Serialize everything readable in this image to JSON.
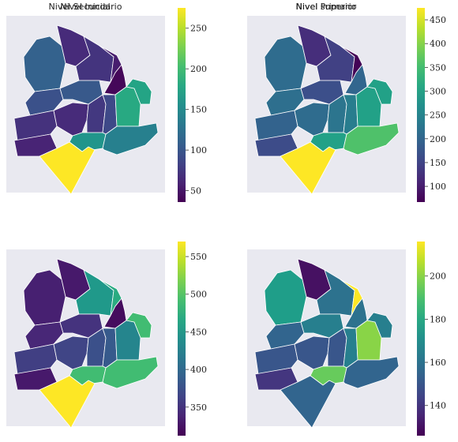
{
  "chart_data": [
    {
      "type": "choropleth",
      "title": "Nivel Inicial",
      "colormap": "viridis",
      "colorbar": {
        "range": [
          36,
          275
        ],
        "ticks": [
          50,
          100,
          150,
          200,
          250
        ]
      },
      "values": [
        110,
        65,
        72,
        55,
        40,
        95,
        102,
        70,
        60,
        65,
        75,
        88,
        180,
        175,
        160,
        140,
        275
      ]
    },
    {
      "type": "choropleth",
      "title": "Nivel Primario",
      "colormap": "viridis",
      "colorbar": {
        "range": [
          67,
          475
        ],
        "ticks": [
          100,
          150,
          200,
          250,
          300,
          350,
          400,
          450
        ]
      },
      "values": [
        210,
        120,
        145,
        70,
        200,
        215,
        165,
        195,
        160,
        210,
        225,
        240,
        300,
        300,
        300,
        360,
        475
      ]
    },
    {
      "type": "choropleth",
      "title": "Nivel Secundario",
      "colormap": "viridis",
      "colorbar": {
        "range": [
          312,
          570
        ],
        "ticks": [
          350,
          400,
          450,
          500,
          550
        ]
      },
      "values": [
        335,
        330,
        450,
        470,
        320,
        340,
        350,
        360,
        330,
        365,
        375,
        385,
        430,
        490,
        490,
        490,
        570
      ]
    },
    {
      "type": "choropleth",
      "title": "Nivel superior",
      "colormap": "viridis",
      "colorbar": {
        "range": [
          126,
          216
        ],
        "ticks": [
          140,
          160,
          180,
          200
        ]
      },
      "values": [
        176,
        130,
        160,
        216,
        160,
        155,
        165,
        150,
        140,
        150,
        150,
        165,
        200,
        165,
        195,
        155,
        155
      ]
    }
  ]
}
